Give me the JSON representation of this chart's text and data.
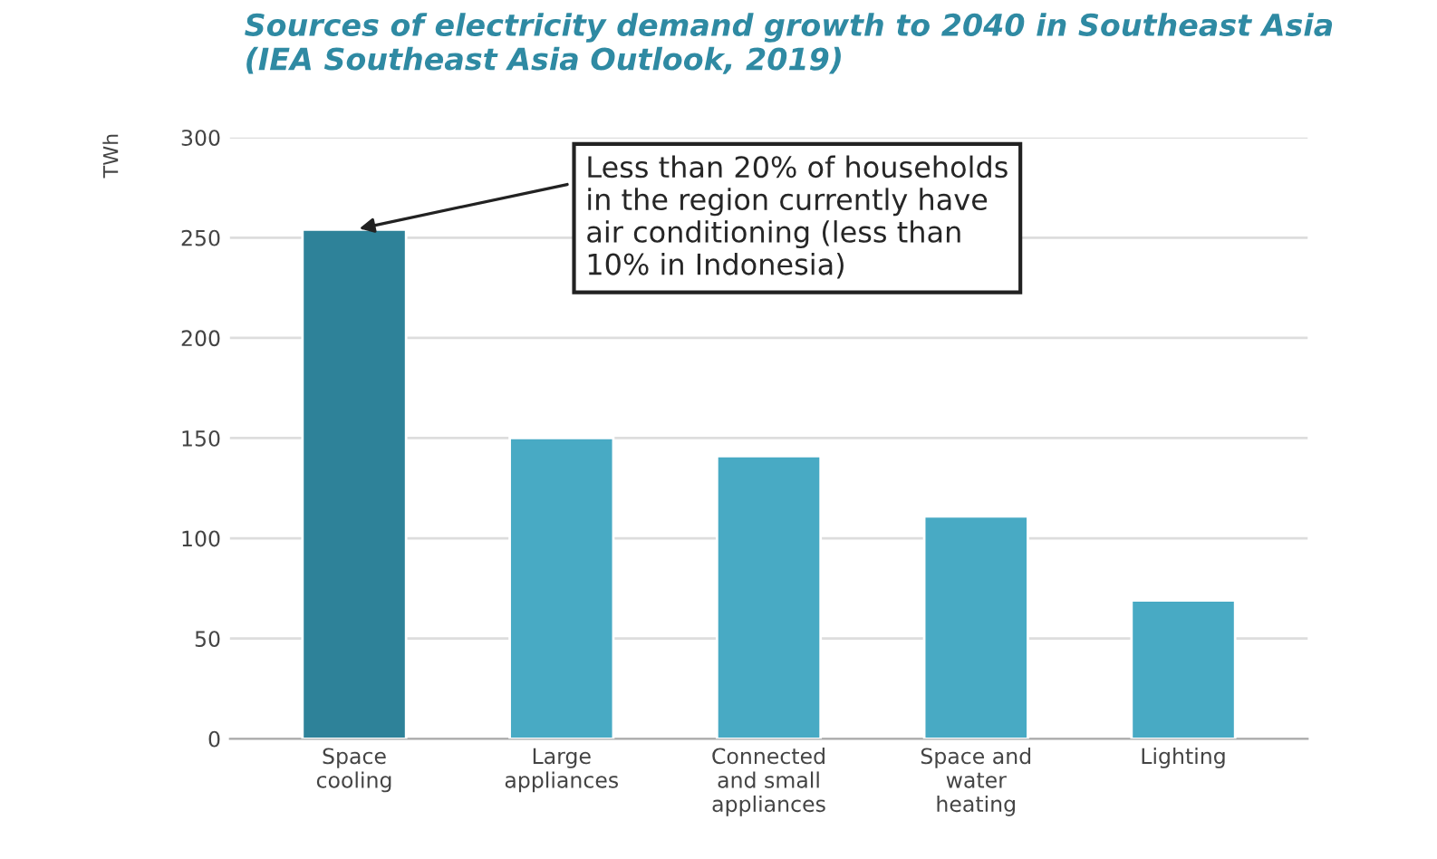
{
  "chart_data": {
    "type": "bar",
    "title": "Sources of electricity demand growth to 2040 in Southeast Asia\n(IEA Southeast Asia Outlook, 2019)",
    "ylabel": "TWh",
    "categories": [
      "Space\ncooling",
      "Large\nappliances",
      "Connected\nand small\nappliances",
      "Space and\nwater\nheating",
      "Lighting"
    ],
    "values": [
      254,
      150,
      141,
      111,
      69
    ],
    "colors": [
      "#2e8299",
      "#48aac4",
      "#48aac4",
      "#48aac4",
      "#48aac4"
    ],
    "ylim": [
      0,
      300
    ],
    "yticks": [
      0,
      50,
      100,
      150,
      200,
      250,
      300
    ],
    "grid": "y",
    "annotations": [
      {
        "text": "Less than 20% of households\nin the region currently have\nair conditioning (less than\n10% in Indonesia)",
        "x": "Space\ncooling",
        "y": 254
      }
    ]
  }
}
